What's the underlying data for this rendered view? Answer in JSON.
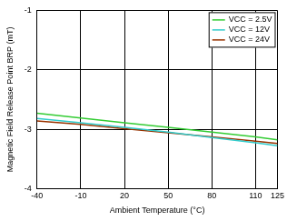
{
  "chart_data": {
    "type": "line",
    "x_label": "Ambient Temperature (°C)",
    "y_label": "Magnetic Field Release Point BRP (mT)",
    "x": [
      -40,
      -10,
      20,
      50,
      80,
      110,
      125
    ],
    "series": [
      {
        "name": "VCC = 2.5V",
        "color": "#33cc33",
        "values": [
          -2.73,
          -2.81,
          -2.89,
          -2.97,
          -3.05,
          -3.13,
          -3.18
        ]
      },
      {
        "name": "VCC = 12V",
        "color": "#33cccc",
        "values": [
          -2.82,
          -2.89,
          -2.97,
          -3.05,
          -3.14,
          -3.23,
          -3.28
        ]
      },
      {
        "name": "VCC = 24V",
        "color": "#993300",
        "values": [
          -2.86,
          -2.92,
          -2.99,
          -3.06,
          -3.13,
          -3.2,
          -3.24
        ]
      }
    ],
    "xlim": [
      -40,
      125
    ],
    "xticks": [
      -40,
      -10,
      20,
      50,
      80,
      110,
      125
    ],
    "ylim": [
      -4,
      -1
    ],
    "yticks": [
      -4,
      -3,
      -2,
      -1
    ],
    "grid": true,
    "legend": "upper right"
  }
}
